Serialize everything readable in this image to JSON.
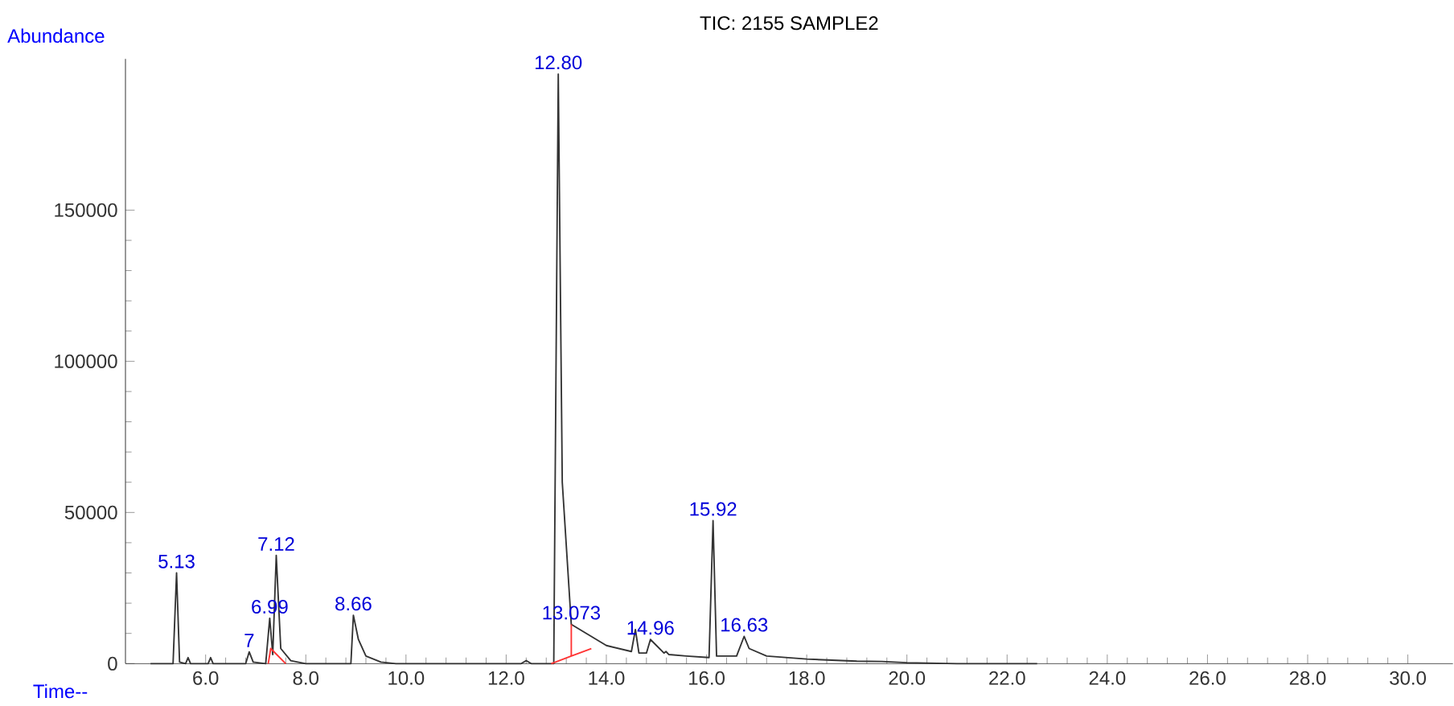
{
  "chart_data": {
    "type": "line",
    "title": "TIC: 2155  SAMPLE2",
    "xlabel": "Time--",
    "ylabel": "Abundance",
    "xlim": [
      4.4,
      30.9
    ],
    "ylim": [
      0,
      200000
    ],
    "xticks": [
      {
        "value": 6,
        "label": "6.0"
      },
      {
        "value": 8,
        "label": "8.0"
      },
      {
        "value": 10,
        "label": "10.0"
      },
      {
        "value": 12,
        "label": "12.0"
      },
      {
        "value": 14,
        "label": "14.0"
      },
      {
        "value": 16,
        "label": "16.0"
      },
      {
        "value": 18,
        "label": "18.0"
      },
      {
        "value": 20,
        "label": "20.0"
      },
      {
        "value": 22,
        "label": "22.0"
      },
      {
        "value": 24,
        "label": "24.0"
      },
      {
        "value": 26,
        "label": "26.0"
      },
      {
        "value": 28,
        "label": "28.0"
      },
      {
        "value": 30,
        "label": "30.0"
      }
    ],
    "yticks": [
      0,
      50000,
      100000,
      150000
    ],
    "grid": false,
    "series": [
      {
        "color": "#333333",
        "x": [
          4.9,
          5.35,
          5.42,
          5.48,
          5.6,
          5.65,
          5.7,
          6.05,
          6.1,
          6.15,
          6.8,
          6.87,
          6.95,
          7.2,
          7.28,
          7.34,
          7.41,
          7.5,
          7.7,
          8.0,
          8.9,
          8.95,
          9.05,
          9.2,
          9.5,
          9.8,
          12.3,
          12.4,
          12.5,
          12.95,
          13.04,
          13.12,
          13.3,
          13.6,
          14.0,
          14.5,
          14.58,
          14.65,
          14.8,
          14.88,
          15.0,
          15.15,
          15.19,
          15.25,
          15.6,
          16.05,
          16.13,
          16.2,
          16.6,
          16.75,
          16.85,
          17.2,
          18.0,
          19.0,
          19.5,
          20.0,
          21.0,
          22.6
        ],
        "values": [
          0,
          0,
          30000,
          500,
          0,
          2000,
          0,
          0,
          2000,
          0,
          0,
          3900,
          500,
          0,
          15000,
          3000,
          35800,
          5000,
          1000,
          0,
          0,
          16000,
          8000,
          2500,
          500,
          0,
          0,
          1000,
          0,
          0,
          195000,
          60000,
          13000,
          10000,
          6000,
          4000,
          11300,
          3500,
          3500,
          8000,
          6000,
          3500,
          4000,
          3000,
          2500,
          2000,
          47300,
          2500,
          2500,
          9000,
          5000,
          2500,
          1500,
          800,
          700,
          300,
          0,
          0
        ]
      },
      {
        "color": "#ff3333",
        "x": [
          12.9,
          13.3,
          13.7
        ],
        "values": [
          0,
          2500,
          5000
        ]
      },
      {
        "color": "#ff3333",
        "x": [
          13.3,
          13.3
        ],
        "values": [
          2500,
          13000
        ]
      },
      {
        "color": "#ff3333",
        "x": [
          7.25,
          7.3,
          7.6
        ],
        "values": [
          0,
          5000,
          0
        ]
      }
    ],
    "annotations": [
      {
        "text": "5.13",
        "x": 5.42,
        "y": 30000
      },
      {
        "text": "7",
        "x": 6.87,
        "y": 3900
      },
      {
        "text": "6.99",
        "x": 7.28,
        "y": 15000
      },
      {
        "text": "7.12",
        "x": 7.41,
        "y": 35800
      },
      {
        "text": "8.66",
        "x": 8.95,
        "y": 16000
      },
      {
        "text": "12.80",
        "x": 13.04,
        "y": 195000
      },
      {
        "text": "13.073",
        "x": 13.3,
        "y": 13000
      },
      {
        "text": "14.96",
        "x": 14.88,
        "y": 8000
      },
      {
        "text": "15.92",
        "x": 16.13,
        "y": 47300
      },
      {
        "text": "16.63",
        "x": 16.75,
        "y": 9000
      }
    ]
  }
}
